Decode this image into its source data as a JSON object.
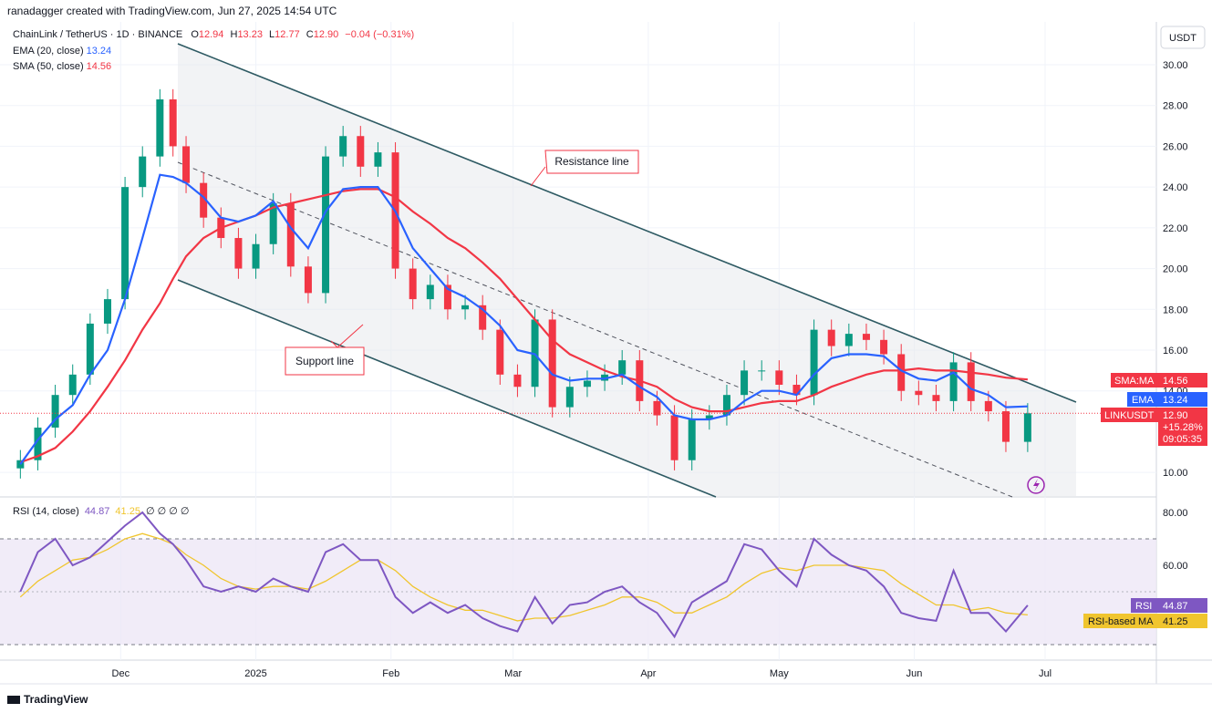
{
  "header": {
    "created_by": "ranadagger created with TradingView.com, Jun 27, 2025 14:54 UTC"
  },
  "legend": {
    "symbol": "ChainLink / TetherUS · 1D · BINANCE",
    "ohlc": {
      "o_label": "O",
      "o": "12.94",
      "h_label": "H",
      "h": "13.23",
      "l_label": "L",
      "l": "12.77",
      "c_label": "C",
      "c": "12.90",
      "change": "−0.04 (−0.31%)"
    },
    "ema_label": "EMA (20, close)",
    "ema_value": "13.24",
    "sma_label": "SMA (50, close)",
    "sma_value": "14.56",
    "rsi_label": "RSI (14, close)",
    "rsi_value": "44.87",
    "rsi_ma_value": "41.25",
    "rsi_extra": "∅ ∅ ∅ ∅"
  },
  "price_scale": {
    "currency": "USDT",
    "ticks": [
      "30.00",
      "28.00",
      "26.00",
      "24.00",
      "22.00",
      "20.00",
      "18.00",
      "16.00",
      "14.00",
      "10.00"
    ]
  },
  "rsi_scale": {
    "ticks": [
      "80.00",
      "60.00"
    ]
  },
  "time_axis": {
    "labels": [
      "Dec",
      "2025",
      "Feb",
      "Mar",
      "Apr",
      "May",
      "Jun",
      "Jul"
    ]
  },
  "price_tags": {
    "sma": {
      "label": "SMA:MA",
      "value": "14.56"
    },
    "ema": {
      "label": "EMA",
      "value": "13.24"
    },
    "symbol": {
      "label": "LINKUSDT",
      "value": "12.90",
      "change": "+15.28%",
      "countdown": "09:05:35"
    },
    "rsi": {
      "label": "RSI",
      "value": "44.87"
    },
    "rsi_ma": {
      "label": "RSI-based MA",
      "value": "41.25"
    }
  },
  "annotations": {
    "resistance": "Resistance line",
    "support": "Support line"
  },
  "colors": {
    "up": "#089981",
    "down": "#f23645",
    "ema": "#2962ff",
    "sma": "#f23645",
    "rsi": "#7e57c2",
    "rsi_ma": "#f0c52e",
    "channel": "#2e5a63"
  },
  "footer": {
    "brand": "TradingView"
  },
  "chart_data": {
    "type": "candlestick",
    "symbol": "LINKUSDT",
    "timeframe": "1D",
    "ylim": [
      9,
      31
    ],
    "x": [
      "2024-11-08",
      "2024-11-12",
      "2024-11-16",
      "2024-11-20",
      "2024-11-24",
      "2024-11-28",
      "2024-12-02",
      "2024-12-06",
      "2024-12-10",
      "2024-12-13",
      "2024-12-16",
      "2024-12-20",
      "2024-12-24",
      "2024-12-28",
      "2025-01-01",
      "2025-01-05",
      "2025-01-09",
      "2025-01-13",
      "2025-01-17",
      "2025-01-21",
      "2025-01-25",
      "2025-01-29",
      "2025-02-02",
      "2025-02-06",
      "2025-02-10",
      "2025-02-14",
      "2025-02-18",
      "2025-02-22",
      "2025-02-26",
      "2025-03-02",
      "2025-03-06",
      "2025-03-10",
      "2025-03-14",
      "2025-03-18",
      "2025-03-22",
      "2025-03-26",
      "2025-03-30",
      "2025-04-03",
      "2025-04-07",
      "2025-04-11",
      "2025-04-15",
      "2025-04-19",
      "2025-04-23",
      "2025-04-27",
      "2025-05-01",
      "2025-05-05",
      "2025-05-09",
      "2025-05-13",
      "2025-05-17",
      "2025-05-21",
      "2025-05-25",
      "2025-05-29",
      "2025-06-02",
      "2025-06-06",
      "2025-06-10",
      "2025-06-14",
      "2025-06-18",
      "2025-06-22",
      "2025-06-27"
    ],
    "close": [
      10.6,
      12.2,
      13.8,
      14.8,
      17.3,
      18.5,
      24.0,
      25.5,
      28.3,
      26.0,
      24.2,
      22.5,
      21.5,
      20.0,
      21.2,
      23.2,
      20.1,
      18.8,
      25.5,
      26.5,
      25.0,
      25.7,
      20.0,
      18.5,
      19.2,
      18.0,
      18.2,
      17.0,
      14.8,
      14.2,
      17.5,
      13.2,
      14.2,
      14.5,
      14.8,
      15.5,
      13.5,
      12.8,
      10.6,
      12.6,
      12.8,
      13.8,
      15.0,
      15.0,
      14.3,
      13.8,
      17.0,
      16.2,
      16.8,
      16.5,
      15.8,
      14.0,
      13.8,
      13.5,
      15.4,
      13.5,
      13.0,
      11.5,
      12.9
    ],
    "ema20": [
      10.4,
      11.6,
      12.6,
      13.3,
      14.8,
      16.0,
      18.5,
      21.5,
      24.6,
      24.5,
      24.2,
      23.5,
      22.5,
      22.3,
      22.6,
      23.3,
      22.0,
      21.0,
      22.8,
      23.9,
      24.0,
      24.0,
      22.8,
      21.0,
      20.0,
      19.0,
      18.6,
      18.0,
      17.2,
      16.0,
      15.8,
      14.8,
      14.5,
      14.6,
      14.6,
      14.8,
      14.2,
      13.7,
      12.8,
      12.6,
      12.6,
      12.8,
      13.5,
      14.0,
      14.0,
      13.8,
      14.8,
      15.6,
      15.8,
      15.8,
      15.7,
      15.0,
      14.6,
      14.5,
      14.9,
      14.1,
      13.8,
      13.2,
      13.24
    ],
    "sma50": [
      10.5,
      10.8,
      11.2,
      12.0,
      13.0,
      14.2,
      15.5,
      17.0,
      18.3,
      19.5,
      20.6,
      21.5,
      22.0,
      22.3,
      22.6,
      23.0,
      23.2,
      23.4,
      23.6,
      23.8,
      23.9,
      23.9,
      23.5,
      22.8,
      22.2,
      21.5,
      21.0,
      20.3,
      19.5,
      18.5,
      17.5,
      16.5,
      15.8,
      15.4,
      15.0,
      14.7,
      14.5,
      14.2,
      13.6,
      13.2,
      13.0,
      13.0,
      13.2,
      13.4,
      13.5,
      13.5,
      13.8,
      14.2,
      14.5,
      14.8,
      15.0,
      15.0,
      15.1,
      15.0,
      15.0,
      14.9,
      14.8,
      14.65,
      14.56
    ],
    "rsi": [
      50,
      65,
      70,
      60,
      63,
      69,
      75,
      80,
      72,
      68,
      62,
      52,
      50,
      52,
      50,
      55,
      52,
      50,
      65,
      68,
      62,
      62,
      48,
      42,
      46,
      42,
      45,
      40,
      37,
      35,
      48,
      38,
      45,
      46,
      50,
      52,
      46,
      42,
      33,
      46,
      50,
      54,
      68,
      66,
      58,
      52,
      70,
      64,
      60,
      58,
      52,
      42,
      40,
      39,
      58,
      42,
      42,
      35,
      44.87
    ],
    "rsi_ma": [
      48,
      54,
      58,
      62,
      63,
      66,
      70,
      72,
      70,
      68,
      64,
      60,
      55,
      52,
      51,
      52,
      52,
      51,
      54,
      58,
      62,
      62,
      58,
      52,
      48,
      45,
      43,
      43,
      41,
      39,
      40,
      40,
      41,
      43,
      45,
      48,
      48,
      46,
      42,
      42,
      45,
      48,
      53,
      57,
      59,
      58,
      60,
      60,
      60,
      59,
      58,
      53,
      49,
      45,
      45,
      43,
      44,
      42,
      41.25
    ]
  }
}
